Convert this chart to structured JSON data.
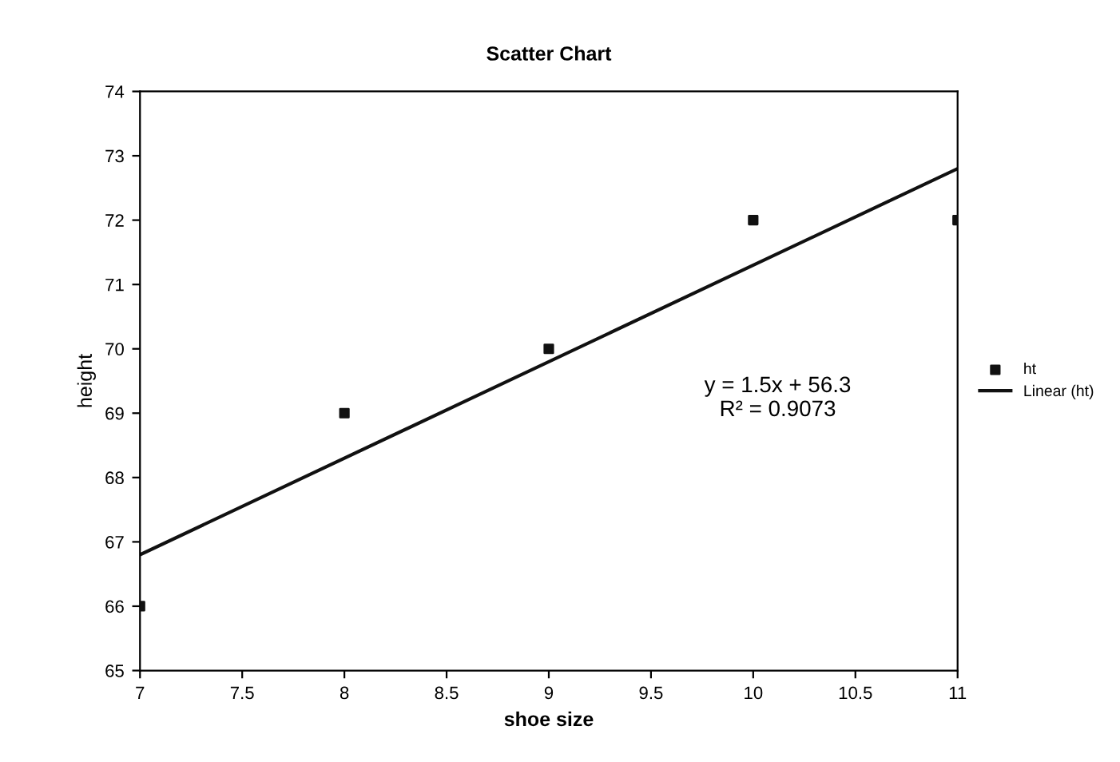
{
  "chart_data": {
    "type": "scatter",
    "title": "Scatter Chart",
    "xlabel": "shoe size",
    "ylabel": "height",
    "x": [
      7,
      8,
      9,
      10,
      11
    ],
    "series": [
      {
        "name": "ht",
        "color": "#111111",
        "values": [
          66,
          69,
          70,
          72,
          72
        ],
        "marker": "square"
      },
      {
        "name": "Linear (ht)",
        "type": "line",
        "color": "#111111",
        "x": [
          7,
          11
        ],
        "values": [
          66.8,
          72.8
        ],
        "marker": "none"
      }
    ],
    "annotations": [
      "y = 1.5x + 56.3\nR² = 0.9073"
    ],
    "xlim": [
      7,
      11
    ],
    "ylim": [
      65,
      74
    ],
    "xticks": [
      7,
      7.5,
      8,
      8.5,
      9,
      9.5,
      10,
      10.5,
      11
    ],
    "yticks": [
      65,
      66,
      67,
      68,
      69,
      70,
      71,
      72,
      73,
      74
    ],
    "legend": "right",
    "grid": false
  }
}
